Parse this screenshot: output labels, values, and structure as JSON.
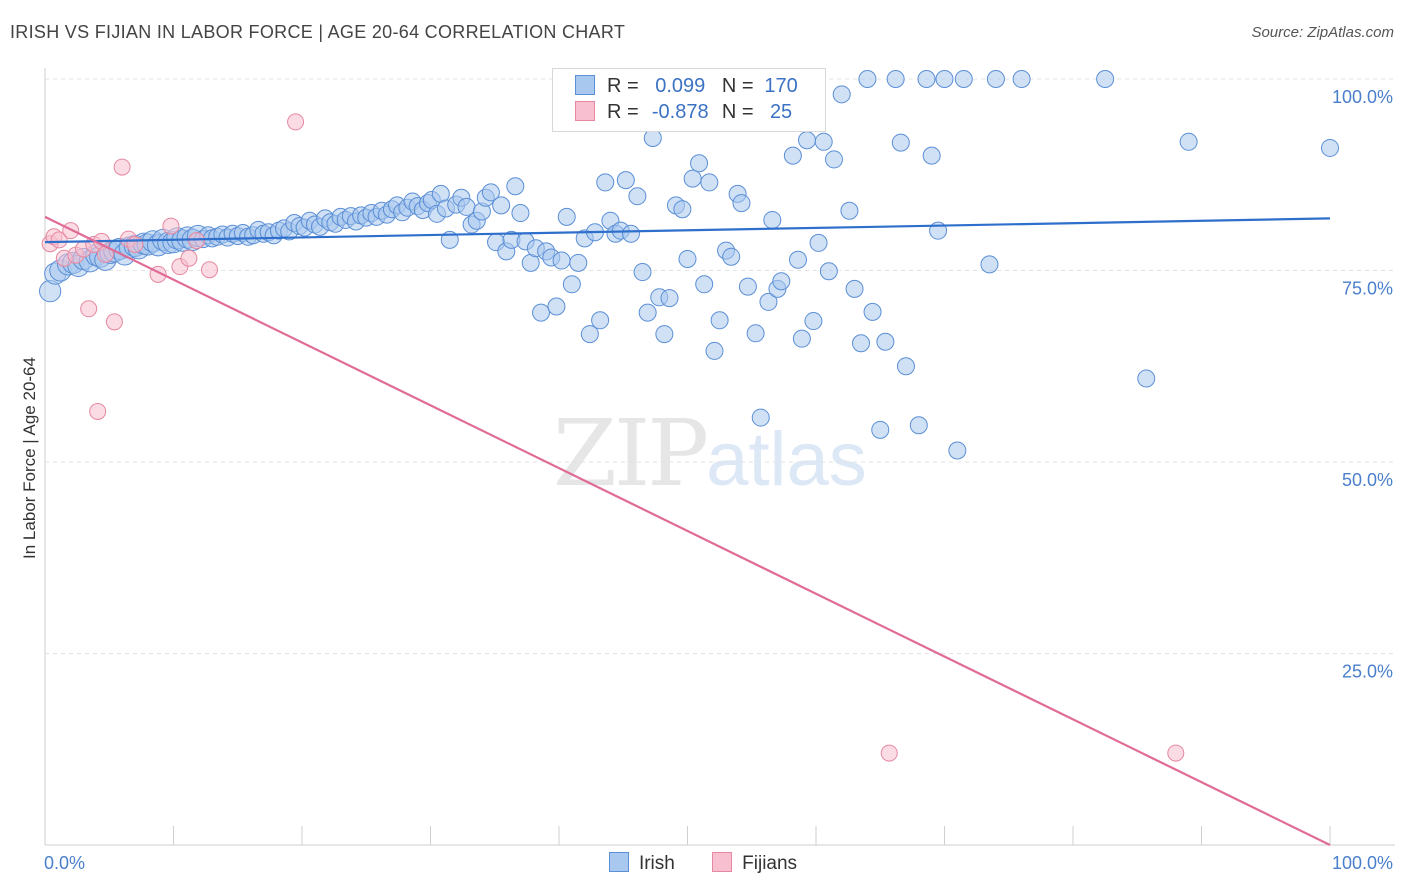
{
  "header": {
    "title": "IRISH VS FIJIAN IN LABOR FORCE | AGE 20-64 CORRELATION CHART",
    "source": "Source: ZipAtlas.com"
  },
  "watermark": {
    "zip": "ZIP",
    "atlas": "atlas"
  },
  "legend": {
    "irish": {
      "r_label": "R =",
      "r_value": "0.099",
      "n_label": "N =",
      "n_value": "170"
    },
    "fijian": {
      "r_label": "R =",
      "r_value": "-0.878",
      "n_label": "N =",
      "n_value": "25"
    }
  },
  "colors": {
    "irish_fill": "#a9c8ef",
    "irish_stroke": "#5b8fd6",
    "irish_line": "#2f6fcc",
    "fijian_fill": "#f7bfd0",
    "fijian_stroke": "#e6889f",
    "fijian_line": "#e06b96",
    "tick_label": "#4a7fcc",
    "grid": "#e3e3e3"
  },
  "chart_data": {
    "type": "scatter",
    "title": "IRISH VS FIJIAN IN LABOR FORCE | AGE 20-64 CORRELATION CHART",
    "xlabel": "",
    "ylabel": "In Labor Force | Age 20-64",
    "xlim": [
      0,
      100
    ],
    "ylim": [
      0,
      100
    ],
    "x_tick_labels": [
      "0.0%",
      "100.0%"
    ],
    "y_ticks": [
      25,
      50,
      75,
      100
    ],
    "y_tick_labels": [
      "25.0%",
      "50.0%",
      "75.0%",
      "100.0%"
    ],
    "grid": true,
    "legend_placement": "top-center",
    "series": [
      {
        "name": "Irish",
        "trend": [
          [
            0,
            78.7
          ],
          [
            100,
            81.8
          ]
        ],
        "points": [
          [
            0.4,
            72.3
          ],
          [
            0.8,
            74.6
          ],
          [
            1.2,
            75.0
          ],
          [
            1.8,
            75.8
          ],
          [
            2.2,
            76.0
          ],
          [
            2.6,
            75.6
          ],
          [
            3.0,
            76.5
          ],
          [
            3.5,
            76.2
          ],
          [
            4.0,
            77.0
          ],
          [
            4.3,
            76.8
          ],
          [
            4.7,
            76.4
          ],
          [
            5.1,
            77.3
          ],
          [
            5.4,
            77.5
          ],
          [
            5.8,
            77.8
          ],
          [
            6.2,
            77.1
          ],
          [
            6.6,
            78.0
          ],
          [
            7.0,
            78.2
          ],
          [
            7.3,
            77.9
          ],
          [
            7.7,
            78.5
          ],
          [
            8.0,
            78.4
          ],
          [
            8.4,
            78.8
          ],
          [
            8.8,
            78.3
          ],
          [
            9.2,
            79.0
          ],
          [
            9.6,
            78.6
          ],
          [
            10.0,
            78.7
          ],
          [
            10.3,
            79.2
          ],
          [
            10.7,
            78.9
          ],
          [
            11.1,
            79.3
          ],
          [
            11.5,
            79.0
          ],
          [
            11.9,
            79.5
          ],
          [
            12.3,
            79.1
          ],
          [
            12.7,
            79.6
          ],
          [
            13.0,
            79.2
          ],
          [
            13.4,
            79.4
          ],
          [
            13.8,
            79.7
          ],
          [
            14.2,
            79.3
          ],
          [
            14.6,
            79.8
          ],
          [
            15.0,
            79.5
          ],
          [
            15.4,
            79.9
          ],
          [
            15.8,
            79.4
          ],
          [
            16.2,
            79.6
          ],
          [
            16.6,
            80.3
          ],
          [
            17.0,
            79.8
          ],
          [
            17.4,
            80.0
          ],
          [
            17.8,
            79.6
          ],
          [
            18.2,
            80.2
          ],
          [
            18.6,
            80.5
          ],
          [
            19.0,
            80.1
          ],
          [
            19.4,
            81.2
          ],
          [
            19.8,
            80.8
          ],
          [
            20.2,
            80.6
          ],
          [
            20.6,
            81.5
          ],
          [
            21.0,
            81.0
          ],
          [
            21.4,
            80.7
          ],
          [
            21.8,
            81.8
          ],
          [
            22.2,
            81.3
          ],
          [
            22.6,
            81.1
          ],
          [
            23.0,
            82.0
          ],
          [
            23.4,
            81.6
          ],
          [
            23.8,
            82.1
          ],
          [
            24.2,
            81.4
          ],
          [
            24.6,
            82.2
          ],
          [
            25.0,
            81.9
          ],
          [
            25.4,
            82.5
          ],
          [
            25.8,
            82.0
          ],
          [
            26.2,
            82.8
          ],
          [
            26.6,
            82.3
          ],
          [
            27.0,
            83.0
          ],
          [
            27.4,
            83.5
          ],
          [
            27.8,
            82.6
          ],
          [
            28.2,
            83.2
          ],
          [
            28.6,
            84.0
          ],
          [
            29.0,
            83.4
          ],
          [
            29.4,
            82.9
          ],
          [
            29.8,
            83.8
          ],
          [
            30.1,
            84.2
          ],
          [
            30.5,
            82.4
          ],
          [
            30.8,
            85.0
          ],
          [
            31.2,
            83.1
          ],
          [
            31.5,
            79.0
          ],
          [
            32.0,
            83.6
          ],
          [
            32.4,
            84.5
          ],
          [
            32.8,
            83.3
          ],
          [
            33.2,
            81.0
          ],
          [
            33.6,
            81.5
          ],
          [
            34.0,
            82.7
          ],
          [
            34.3,
            84.5
          ],
          [
            34.7,
            85.2
          ],
          [
            35.1,
            78.7
          ],
          [
            35.5,
            83.5
          ],
          [
            35.9,
            77.5
          ],
          [
            36.3,
            79.0
          ],
          [
            36.6,
            86.0
          ],
          [
            37.0,
            82.5
          ],
          [
            37.4,
            78.8
          ],
          [
            37.8,
            76.0
          ],
          [
            38.2,
            77.9
          ],
          [
            38.6,
            69.5
          ],
          [
            39.0,
            77.5
          ],
          [
            39.4,
            76.7
          ],
          [
            39.8,
            70.3
          ],
          [
            40.2,
            76.3
          ],
          [
            40.6,
            82.0
          ],
          [
            41.0,
            73.2
          ],
          [
            41.5,
            76.0
          ],
          [
            42.0,
            79.2
          ],
          [
            42.4,
            66.7
          ],
          [
            42.8,
            80.0
          ],
          [
            43.2,
            68.5
          ],
          [
            43.6,
            86.5
          ],
          [
            44.0,
            81.5
          ],
          [
            44.4,
            79.8
          ],
          [
            44.8,
            80.2
          ],
          [
            45.2,
            86.8
          ],
          [
            45.6,
            79.8
          ],
          [
            46.1,
            84.7
          ],
          [
            46.5,
            74.8
          ],
          [
            46.9,
            69.5
          ],
          [
            47.3,
            92.3
          ],
          [
            47.8,
            71.5
          ],
          [
            48.2,
            66.7
          ],
          [
            48.6,
            71.4
          ],
          [
            49.1,
            83.5
          ],
          [
            49.6,
            83.0
          ],
          [
            50.0,
            76.5
          ],
          [
            50.4,
            87.0
          ],
          [
            50.9,
            89.0
          ],
          [
            51.3,
            73.2
          ],
          [
            51.7,
            86.5
          ],
          [
            52.1,
            64.5
          ],
          [
            52.5,
            68.5
          ],
          [
            53.0,
            77.6
          ],
          [
            53.4,
            76.8
          ],
          [
            53.9,
            85.0
          ],
          [
            54.2,
            83.8
          ],
          [
            54.7,
            72.9
          ],
          [
            55.3,
            66.8
          ],
          [
            55.7,
            55.8
          ],
          [
            56.3,
            70.9
          ],
          [
            56.6,
            81.6
          ],
          [
            57.0,
            72.6
          ],
          [
            57.3,
            73.6
          ],
          [
            58.2,
            90.0
          ],
          [
            58.6,
            76.4
          ],
          [
            58.9,
            66.1
          ],
          [
            59.3,
            92.0
          ],
          [
            59.8,
            68.4
          ],
          [
            60.2,
            78.6
          ],
          [
            60.6,
            91.8
          ],
          [
            61.0,
            74.9
          ],
          [
            61.4,
            89.5
          ],
          [
            62.0,
            98.0
          ],
          [
            62.6,
            82.8
          ],
          [
            63.0,
            72.6
          ],
          [
            63.5,
            65.5
          ],
          [
            64.0,
            100.0
          ],
          [
            64.4,
            69.6
          ],
          [
            65.0,
            54.2
          ],
          [
            65.4,
            65.7
          ],
          [
            66.2,
            100.0
          ],
          [
            66.6,
            91.7
          ],
          [
            67.0,
            62.5
          ],
          [
            68.0,
            54.8
          ],
          [
            68.6,
            100.0
          ],
          [
            69.0,
            90.0
          ],
          [
            69.5,
            80.2
          ],
          [
            70.0,
            100.0
          ],
          [
            71.0,
            51.5
          ],
          [
            71.5,
            100.0
          ],
          [
            73.5,
            75.8
          ],
          [
            74.0,
            100.0
          ],
          [
            76.0,
            100.0
          ],
          [
            82.5,
            100.0
          ],
          [
            85.7,
            60.9
          ],
          [
            89.0,
            91.8
          ],
          [
            100.0,
            91.0
          ]
        ]
      },
      {
        "name": "Fijians",
        "trend": [
          [
            0,
            82.0
          ],
          [
            100,
            0
          ]
        ],
        "points": [
          [
            0.4,
            78.5
          ],
          [
            0.7,
            79.4
          ],
          [
            1.1,
            79.0
          ],
          [
            1.5,
            76.6
          ],
          [
            2.0,
            80.2
          ],
          [
            2.4,
            77.0
          ],
          [
            3.0,
            77.8
          ],
          [
            3.4,
            70.0
          ],
          [
            3.8,
            78.4
          ],
          [
            4.1,
            56.6
          ],
          [
            4.4,
            78.8
          ],
          [
            4.7,
            77.1
          ],
          [
            5.4,
            68.3
          ],
          [
            6.0,
            88.5
          ],
          [
            6.5,
            79.1
          ],
          [
            7.0,
            78.4
          ],
          [
            8.8,
            74.5
          ],
          [
            9.8,
            80.8
          ],
          [
            10.5,
            75.5
          ],
          [
            11.2,
            76.6
          ],
          [
            11.8,
            78.9
          ],
          [
            12.8,
            75.1
          ],
          [
            19.5,
            94.4
          ],
          [
            65.7,
            12.0
          ],
          [
            88.0,
            12.0
          ]
        ]
      }
    ]
  },
  "bottom_legend": {
    "irish": "Irish",
    "fijian": "Fijians"
  }
}
